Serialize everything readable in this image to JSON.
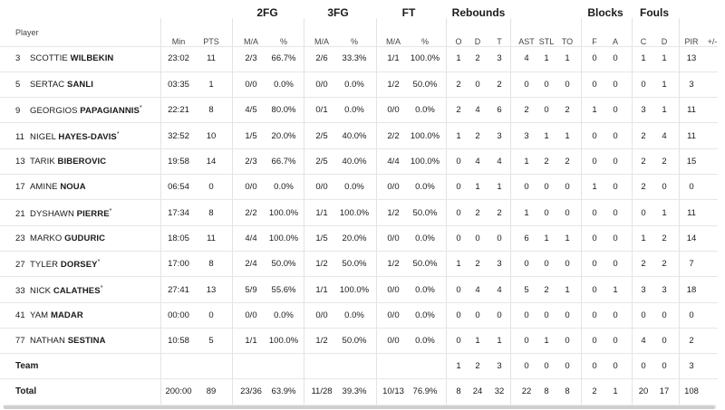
{
  "groups": [
    {
      "label": "2FG"
    },
    {
      "label": "3FG"
    },
    {
      "label": "FT"
    },
    {
      "label": "Rebounds"
    },
    {
      "label": "Blocks"
    },
    {
      "label": "Fouls"
    }
  ],
  "player_header": "Player",
  "columns": [
    "Min",
    "PTS",
    "M/A",
    "%",
    "M/A",
    "%",
    "M/A",
    "%",
    "O",
    "D",
    "T",
    "AST",
    "STL",
    "TO",
    "F",
    "A",
    "C",
    "D",
    "PIR",
    "+/-"
  ],
  "players": [
    {
      "number": "3",
      "first": "SCOTTIE",
      "last": "WILBEKIN",
      "starter": false,
      "stats": [
        "23:02",
        "11",
        "2/3",
        "66.7%",
        "2/6",
        "33.3%",
        "1/1",
        "100.0%",
        "1",
        "2",
        "3",
        "4",
        "1",
        "1",
        "0",
        "0",
        "1",
        "1",
        "13",
        ""
      ]
    },
    {
      "number": "5",
      "first": "SERTAC",
      "last": "SANLI",
      "starter": false,
      "stats": [
        "03:35",
        "1",
        "0/0",
        "0.0%",
        "0/0",
        "0.0%",
        "1/2",
        "50.0%",
        "2",
        "0",
        "2",
        "0",
        "0",
        "0",
        "0",
        "0",
        "0",
        "1",
        "3",
        ""
      ]
    },
    {
      "number": "9",
      "first": "GEORGIOS",
      "last": "PAPAGIANNIS",
      "starter": true,
      "stats": [
        "22:21",
        "8",
        "4/5",
        "80.0%",
        "0/1",
        "0.0%",
        "0/0",
        "0.0%",
        "2",
        "4",
        "6",
        "2",
        "0",
        "2",
        "1",
        "0",
        "3",
        "1",
        "11",
        ""
      ]
    },
    {
      "number": "11",
      "first": "NIGEL",
      "last": "HAYES-DAVIS",
      "starter": true,
      "stats": [
        "32:52",
        "10",
        "1/5",
        "20.0%",
        "2/5",
        "40.0%",
        "2/2",
        "100.0%",
        "1",
        "2",
        "3",
        "3",
        "1",
        "1",
        "0",
        "0",
        "2",
        "4",
        "11",
        ""
      ]
    },
    {
      "number": "13",
      "first": "TARIK",
      "last": "BIBEROVIC",
      "starter": false,
      "stats": [
        "19:58",
        "14",
        "2/3",
        "66.7%",
        "2/5",
        "40.0%",
        "4/4",
        "100.0%",
        "0",
        "4",
        "4",
        "1",
        "2",
        "2",
        "0",
        "0",
        "2",
        "2",
        "15",
        ""
      ]
    },
    {
      "number": "17",
      "first": "AMINE",
      "last": "NOUA",
      "starter": false,
      "stats": [
        "06:54",
        "0",
        "0/0",
        "0.0%",
        "0/0",
        "0.0%",
        "0/0",
        "0.0%",
        "0",
        "1",
        "1",
        "0",
        "0",
        "0",
        "1",
        "0",
        "2",
        "0",
        "0",
        ""
      ]
    },
    {
      "number": "21",
      "first": "DYSHAWN",
      "last": "PIERRE",
      "starter": true,
      "stats": [
        "17:34",
        "8",
        "2/2",
        "100.0%",
        "1/1",
        "100.0%",
        "1/2",
        "50.0%",
        "0",
        "2",
        "2",
        "1",
        "0",
        "0",
        "0",
        "0",
        "0",
        "1",
        "11",
        ""
      ]
    },
    {
      "number": "23",
      "first": "MARKO",
      "last": "GUDURIC",
      "starter": false,
      "stats": [
        "18:05",
        "11",
        "4/4",
        "100.0%",
        "1/5",
        "20.0%",
        "0/0",
        "0.0%",
        "0",
        "0",
        "0",
        "6",
        "1",
        "1",
        "0",
        "0",
        "1",
        "2",
        "14",
        ""
      ]
    },
    {
      "number": "27",
      "first": "TYLER",
      "last": "DORSEY",
      "starter": true,
      "stats": [
        "17:00",
        "8",
        "2/4",
        "50.0%",
        "1/2",
        "50.0%",
        "1/2",
        "50.0%",
        "1",
        "2",
        "3",
        "0",
        "0",
        "0",
        "0",
        "0",
        "2",
        "2",
        "7",
        ""
      ]
    },
    {
      "number": "33",
      "first": "NICK",
      "last": "CALATHES",
      "starter": true,
      "stats": [
        "27:41",
        "13",
        "5/9",
        "55.6%",
        "1/1",
        "100.0%",
        "0/0",
        "0.0%",
        "0",
        "4",
        "4",
        "5",
        "2",
        "1",
        "0",
        "1",
        "3",
        "3",
        "18",
        ""
      ]
    },
    {
      "number": "41",
      "first": "YAM",
      "last": "MADAR",
      "starter": false,
      "stats": [
        "00:00",
        "0",
        "0/0",
        "0.0%",
        "0/0",
        "0.0%",
        "0/0",
        "0.0%",
        "0",
        "0",
        "0",
        "0",
        "0",
        "0",
        "0",
        "0",
        "0",
        "0",
        "0",
        ""
      ]
    },
    {
      "number": "77",
      "first": "NATHAN",
      "last": "SESTINA",
      "starter": false,
      "stats": [
        "10:58",
        "5",
        "1/1",
        "100.0%",
        "1/2",
        "50.0%",
        "0/0",
        "0.0%",
        "0",
        "1",
        "1",
        "0",
        "1",
        "0",
        "0",
        "0",
        "4",
        "0",
        "2",
        ""
      ]
    }
  ],
  "team": {
    "label": "Team",
    "stats": [
      "",
      "",
      "",
      "",
      "",
      "",
      "",
      "",
      "1",
      "2",
      "3",
      "0",
      "0",
      "0",
      "0",
      "0",
      "0",
      "0",
      "3",
      ""
    ]
  },
  "total": {
    "label": "Total",
    "stats": [
      "200:00",
      "89",
      "23/36",
      "63.9%",
      "11/28",
      "39.3%",
      "10/13",
      "76.9%",
      "8",
      "24",
      "32",
      "22",
      "8",
      "8",
      "2",
      "1",
      "20",
      "17",
      "108",
      ""
    ]
  },
  "starter_mark": "*"
}
